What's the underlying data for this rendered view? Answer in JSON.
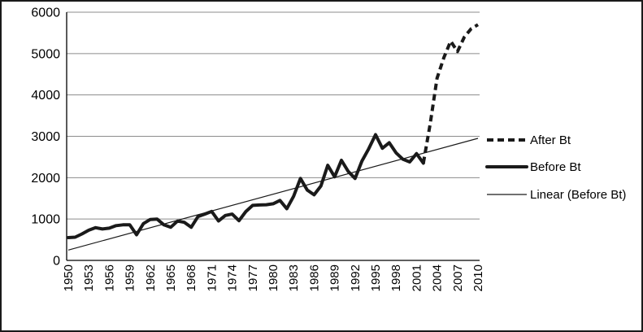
{
  "chart_data": {
    "type": "line",
    "title": "",
    "xlabel": "",
    "ylabel": "",
    "xlim": [
      1950,
      2010
    ],
    "ylim": [
      0,
      6000
    ],
    "yticks": [
      0,
      1000,
      2000,
      3000,
      4000,
      5000,
      6000
    ],
    "xtick_labels": [
      "1950",
      "1953",
      "1956",
      "1959",
      "1962",
      "1965",
      "1968",
      "1971",
      "1974",
      "1977",
      "1980",
      "1983",
      "1986",
      "1989",
      "1992",
      "1995",
      "1998",
      "2001",
      "2004",
      "2007",
      "2010"
    ],
    "grid": true,
    "legend_position": "right-outside",
    "legend": [
      "After Bt",
      "Before Bt",
      "Linear (Before Bt)"
    ],
    "colors": {
      "series": "#1a1a1a",
      "grid": "#8c8c8c",
      "axis": "#000000",
      "text": "#000000",
      "background": "#ffffff",
      "frame": "#1a1a1a"
    },
    "series": [
      {
        "name": "After Bt",
        "style": "dashed-thick",
        "x": [
          2002,
          2003,
          2004,
          2005,
          2006,
          2007,
          2008,
          2009,
          2010
        ],
        "values": [
          2350,
          3300,
          4400,
          4900,
          5300,
          5050,
          5400,
          5600,
          5700
        ]
      },
      {
        "name": "Before Bt",
        "style": "solid-thick",
        "x": [
          1950,
          1951,
          1952,
          1953,
          1954,
          1955,
          1956,
          1957,
          1958,
          1959,
          1960,
          1961,
          1962,
          1963,
          1964,
          1965,
          1966,
          1967,
          1968,
          1969,
          1970,
          1971,
          1972,
          1973,
          1974,
          1975,
          1976,
          1977,
          1978,
          1979,
          1980,
          1981,
          1982,
          1983,
          1984,
          1985,
          1986,
          1987,
          1988,
          1989,
          1990,
          1991,
          1992,
          1993,
          1994,
          1995,
          1996,
          1997,
          1998,
          1999,
          2000,
          2001,
          2002
        ],
        "values": [
          550,
          560,
          640,
          730,
          790,
          760,
          780,
          840,
          860,
          860,
          620,
          890,
          990,
          1000,
          860,
          800,
          950,
          920,
          800,
          1060,
          1120,
          1185,
          955,
          1085,
          1120,
          960,
          1180,
          1330,
          1340,
          1345,
          1370,
          1450,
          1250,
          1550,
          1980,
          1700,
          1585,
          1800,
          2300,
          2020,
          2420,
          2150,
          1980,
          2400,
          2700,
          3040,
          2710,
          2845,
          2600,
          2445,
          2380,
          2580,
          2350
        ]
      },
      {
        "name": "Linear (Before Bt)",
        "style": "solid-thin",
        "x": [
          1950,
          2010
        ],
        "values": [
          250,
          2950
        ]
      }
    ]
  }
}
